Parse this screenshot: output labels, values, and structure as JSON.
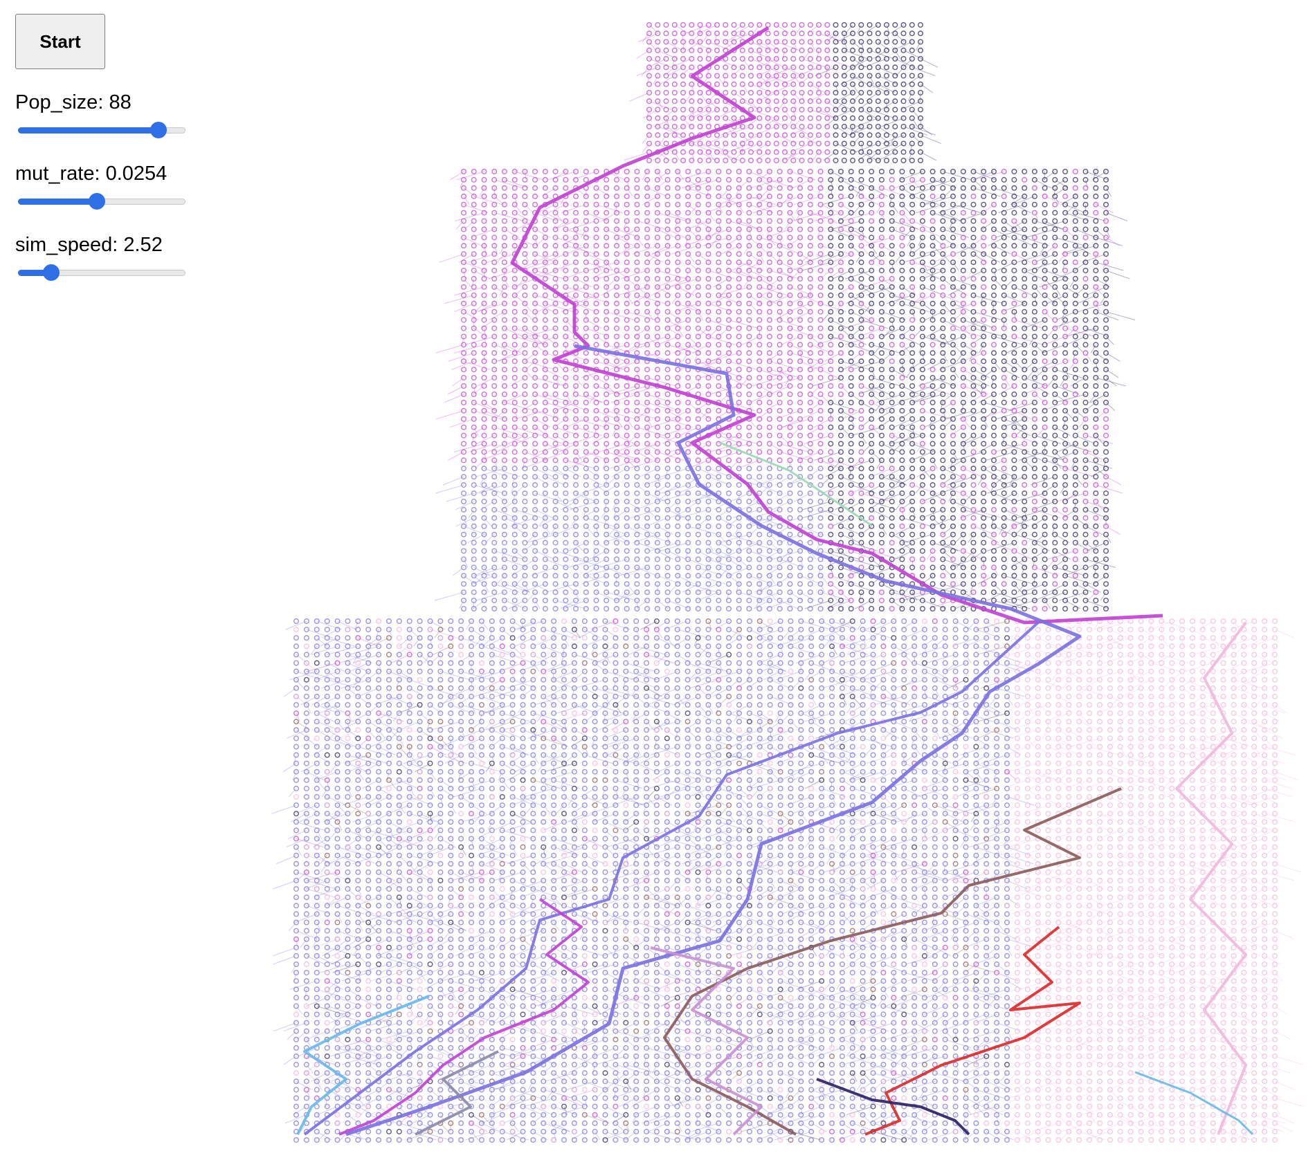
{
  "controls": {
    "start_label": "Start",
    "params": [
      {
        "id": "pop-size",
        "name": "Pop_size",
        "display": "88",
        "fraction": 0.84
      },
      {
        "id": "mut-rate",
        "name": "mut_rate",
        "display": "0.0254",
        "fraction": 0.47
      },
      {
        "id": "sim-speed",
        "name": "sim_speed",
        "display": "2.52",
        "fraction": 0.2
      }
    ]
  },
  "visualization": {
    "description_free": true,
    "accent_colors": {
      "slider": "#2f6fe6",
      "magenta": "#c040d0",
      "violet": "#7a70e0",
      "navy": "#2a2060",
      "pink": "#f0b8dc",
      "brown": "#8a5a5a",
      "red": "#d82828",
      "sky": "#66b8e8",
      "mauve": "#c890d0",
      "gray": "#8a8aa8",
      "mint": "#9ad8b0"
    }
  }
}
